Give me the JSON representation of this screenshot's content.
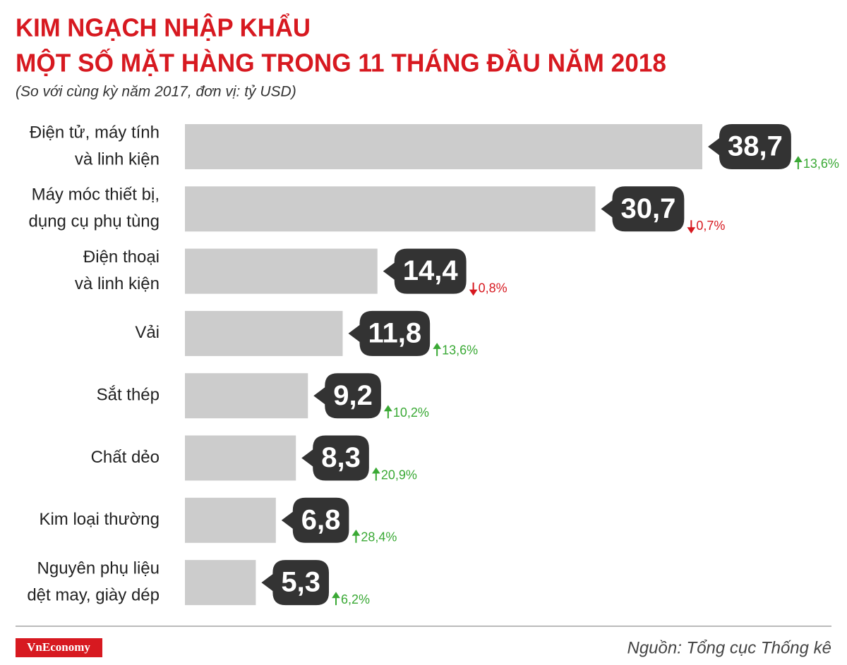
{
  "chart_data": {
    "type": "bar",
    "orientation": "horizontal",
    "title": [
      "KIM NGẠCH NHẬP KHẨU",
      "MỘT SỐ MẶT HÀNG TRONG 11 THÁNG ĐẦU NĂM 2018"
    ],
    "subtitle": "(So với cùng kỳ năm 2017, đơn vị: tỷ USD)",
    "categories": [
      [
        "Điện tử, máy tính",
        "và linh kiện"
      ],
      [
        "Máy móc thiết bị,",
        "dụng cụ phụ tùng"
      ],
      [
        "Điện thoại",
        "và linh kiện"
      ],
      [
        "Vải"
      ],
      [
        "Sắt thép"
      ],
      [
        "Chất dẻo"
      ],
      [
        "Kim loại thường"
      ],
      [
        "Nguyên phụ liệu",
        "dệt may, giày dép"
      ]
    ],
    "values": [
      38.7,
      30.7,
      14.4,
      11.8,
      9.2,
      8.3,
      6.8,
      5.3
    ],
    "value_labels": [
      "38,7",
      "30,7",
      "14,4",
      "11,8",
      "9,2",
      "8,3",
      "6,8",
      "5,3"
    ],
    "changes": [
      13.6,
      -0.7,
      -0.8,
      13.6,
      10.2,
      20.9,
      28.4,
      6.2
    ],
    "change_labels": [
      "13,6%",
      "0,7%",
      "0,8%",
      "13,6%",
      "10,2%",
      "20,9%",
      "28,4%",
      "6,2%"
    ],
    "color": "#cccccc",
    "bubble_color": "#333333",
    "up_color": "#3aa935",
    "down_color": "#d71920",
    "source": "Nguồn: Tổng cục Thống kê",
    "brand": "VnEconomy"
  }
}
